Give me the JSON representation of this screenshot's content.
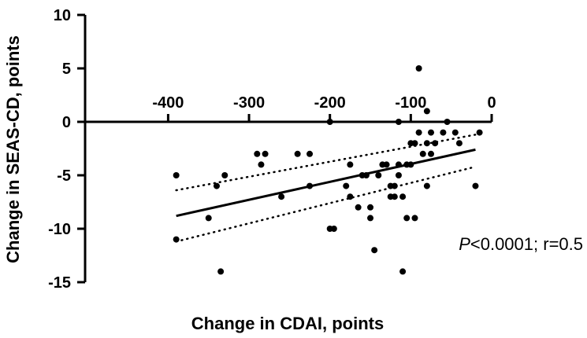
{
  "chart_data": {
    "type": "scatter",
    "xlabel": "Change in CDAI, points",
    "ylabel": "Change in SEAS-CD, points",
    "xlim": [
      -400,
      0
    ],
    "ylim": [
      -15,
      10
    ],
    "x_ticks": [
      -400,
      -300,
      -200,
      -100,
      0
    ],
    "y_ticks": [
      10,
      5,
      0,
      -5,
      -10,
      -15
    ],
    "annotation": {
      "italic": "P",
      "text": "<0.0001; r=0.5"
    },
    "points": [
      {
        "x": -390,
        "y": -5
      },
      {
        "x": -390,
        "y": -11
      },
      {
        "x": -340,
        "y": -6
      },
      {
        "x": -330,
        "y": -5
      },
      {
        "x": -350,
        "y": -9
      },
      {
        "x": -335,
        "y": -14
      },
      {
        "x": -290,
        "y": -3
      },
      {
        "x": -285,
        "y": -4
      },
      {
        "x": -280,
        "y": -3
      },
      {
        "x": -240,
        "y": -3
      },
      {
        "x": -225,
        "y": -3
      },
      {
        "x": -225,
        "y": -6
      },
      {
        "x": -260,
        "y": -7
      },
      {
        "x": -200,
        "y": 0
      },
      {
        "x": -200,
        "y": -10
      },
      {
        "x": -195,
        "y": -10
      },
      {
        "x": -180,
        "y": -6
      },
      {
        "x": -175,
        "y": -7
      },
      {
        "x": -175,
        "y": -4
      },
      {
        "x": -165,
        "y": -8
      },
      {
        "x": -160,
        "y": -5
      },
      {
        "x": -155,
        "y": -5
      },
      {
        "x": -150,
        "y": -9
      },
      {
        "x": -150,
        "y": -8
      },
      {
        "x": -145,
        "y": -12
      },
      {
        "x": -140,
        "y": -5
      },
      {
        "x": -135,
        "y": -4
      },
      {
        "x": -130,
        "y": -4
      },
      {
        "x": -125,
        "y": -6
      },
      {
        "x": -125,
        "y": -7
      },
      {
        "x": -120,
        "y": -6
      },
      {
        "x": -120,
        "y": -7
      },
      {
        "x": -115,
        "y": 0
      },
      {
        "x": -115,
        "y": -4
      },
      {
        "x": -115,
        "y": -5
      },
      {
        "x": -110,
        "y": -7
      },
      {
        "x": -110,
        "y": -14
      },
      {
        "x": -105,
        "y": -9
      },
      {
        "x": -105,
        "y": -4
      },
      {
        "x": -100,
        "y": -4
      },
      {
        "x": -100,
        "y": -2
      },
      {
        "x": -95,
        "y": -2
      },
      {
        "x": -95,
        "y": -9
      },
      {
        "x": -90,
        "y": 5
      },
      {
        "x": -90,
        "y": -1
      },
      {
        "x": -85,
        "y": -3
      },
      {
        "x": -80,
        "y": -2
      },
      {
        "x": -80,
        "y": 1
      },
      {
        "x": -80,
        "y": -6
      },
      {
        "x": -75,
        "y": -1
      },
      {
        "x": -75,
        "y": -3
      },
      {
        "x": -70,
        "y": -2
      },
      {
        "x": -60,
        "y": -1
      },
      {
        "x": -55,
        "y": 0
      },
      {
        "x": -45,
        "y": -1
      },
      {
        "x": -40,
        "y": -2
      },
      {
        "x": -20,
        "y": -6
      },
      {
        "x": -15,
        "y": -1
      }
    ],
    "regression_line": {
      "x": [
        -390,
        -20
      ],
      "y": [
        -8.8,
        -2.6
      ]
    },
    "confidence_band": {
      "upper": {
        "x": [
          -390,
          -20
        ],
        "y": [
          -6.4,
          -1.2
        ]
      },
      "lower": {
        "x": [
          -390,
          -20
        ],
        "y": [
          -11.2,
          -4.2
        ]
      }
    }
  }
}
